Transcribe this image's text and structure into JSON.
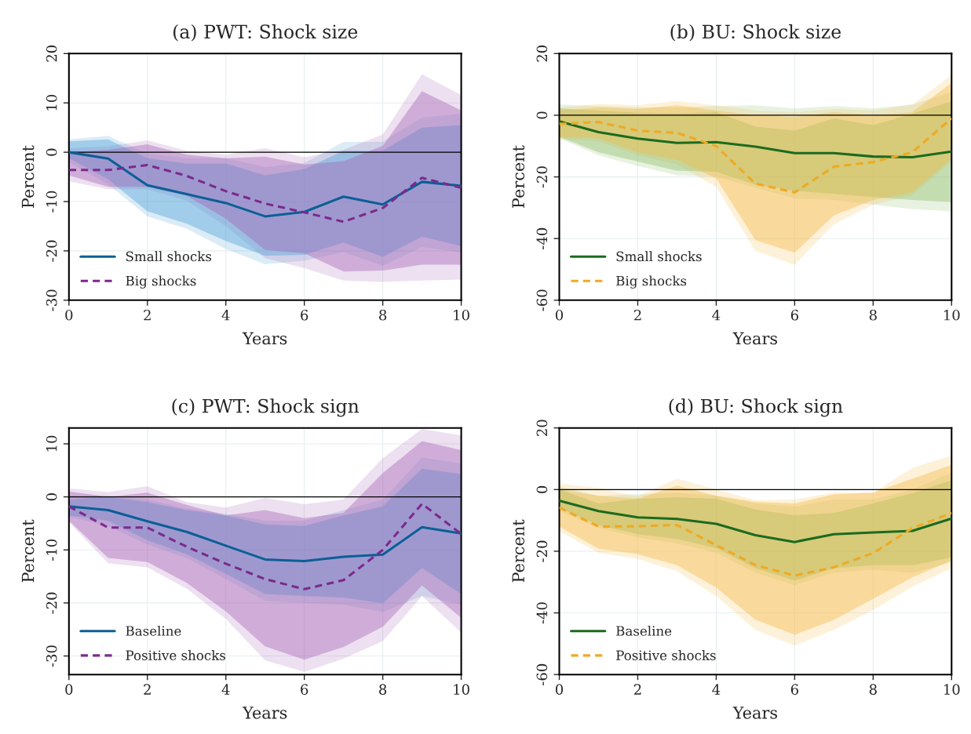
{
  "chart_data": [
    {
      "type": "line",
      "title": "(a) PWT: Shock size",
      "xlabel": "Years",
      "ylabel": "Percent",
      "x": [
        0,
        1,
        2,
        3,
        4,
        5,
        6,
        7,
        8,
        9,
        10
      ],
      "xlim": [
        0,
        10
      ],
      "xticks": [
        0,
        2,
        4,
        6,
        8,
        10
      ],
      "ylim": [
        -30,
        20
      ],
      "yticks": [
        -30,
        -20,
        -10,
        0,
        10,
        20
      ],
      "grid": true,
      "legend": "bottom left",
      "ref_lines": [
        {
          "axis": "y",
          "value": 0,
          "color": "#000000"
        }
      ],
      "series": [
        {
          "color": "#4a9fd8",
          "values": [
            null,
            null,
            null,
            null,
            null,
            null,
            null,
            null,
            null,
            null,
            null
          ],
          "lower": [
            -2,
            -6.5,
            -13,
            -15.5,
            -19.6,
            -22.7,
            -22,
            -20.2,
            -23,
            -19.2,
            -20.3
          ],
          "upper": [
            2.6,
            3.3,
            -0.3,
            -1.2,
            -1.2,
            -3,
            -2.2,
            2.1,
            2.1,
            7,
            7.8
          ]
        },
        {
          "color": "#a562b3",
          "values": [
            null,
            null,
            null,
            null,
            null,
            null,
            null,
            null,
            null,
            null,
            null
          ],
          "lower": [
            -5.9,
            -7.5,
            -7.5,
            -9.8,
            -15,
            -21.5,
            -23.5,
            -26,
            -26.3,
            -26,
            -25.8
          ],
          "upper": [
            0.8,
            1.2,
            2.4,
            0.3,
            -0.5,
            0.8,
            -1,
            0.5,
            3.6,
            15.8,
            11.6
          ]
        },
        {
          "color": "#4a9fd8",
          "values": [
            null,
            null,
            null,
            null,
            null,
            null,
            null,
            null,
            null,
            null,
            null
          ],
          "lower": [
            -1.2,
            -5.5,
            -12,
            -14.5,
            -18,
            -21,
            -20.8,
            -18.3,
            -21.2,
            -17.1,
            -19
          ],
          "upper": [
            2.2,
            2.6,
            -1.2,
            -2.3,
            -2.3,
            -4.7,
            -3.4,
            0.3,
            0.3,
            5,
            5.5
          ]
        },
        {
          "color": "#a562b3",
          "values": [
            null,
            null,
            null,
            null,
            null,
            null,
            null,
            null,
            null,
            null,
            null
          ],
          "lower": [
            -4.7,
            -7,
            -7,
            -8.8,
            -13.5,
            -19.8,
            -20.5,
            -24.2,
            -24,
            -22.8,
            -22.8
          ],
          "upper": [
            0,
            0.5,
            1.6,
            -0.5,
            -1.2,
            -0.9,
            -2.5,
            -1.8,
            1.3,
            12.4,
            8.5
          ]
        },
        {
          "name": "Small shocks",
          "color": "#0b5f96",
          "line_style": "solid",
          "values": [
            0,
            -1.3,
            -6.7,
            -8.5,
            -10.3,
            -13,
            -12.1,
            -9,
            -10.6,
            -6,
            -6.8
          ]
        },
        {
          "name": "Big shocks",
          "color": "#7b2a8c",
          "line_style": "dashed",
          "values": [
            -3.6,
            -3.6,
            -2.6,
            -4.8,
            -7.9,
            -10.4,
            -12.2,
            -14.1,
            -11.3,
            -5.2,
            -7.2
          ]
        }
      ]
    },
    {
      "type": "line",
      "title": "(b) BU: Shock size",
      "xlabel": "Years",
      "ylabel": "Percent",
      "x": [
        0,
        1,
        2,
        3,
        4,
        5,
        6,
        7,
        8,
        9,
        10
      ],
      "xlim": [
        0,
        10
      ],
      "xticks": [
        0,
        2,
        4,
        6,
        8,
        10
      ],
      "ylim": [
        -60,
        20
      ],
      "yticks": [
        -60,
        -40,
        -20,
        0,
        20
      ],
      "grid": true,
      "legend": "bottom left",
      "ref_lines": [
        {
          "axis": "y",
          "value": 0,
          "color": "#000000"
        }
      ],
      "series": [
        {
          "color": "#8bbf6a",
          "values": [
            null,
            null,
            null,
            null,
            null,
            null,
            null,
            null,
            null,
            null,
            null
          ],
          "lower": [
            -7.5,
            -13,
            -16.5,
            -19.5,
            -20,
            -23.5,
            -27,
            -27.5,
            -29,
            -30.5,
            -31.2
          ],
          "upper": [
            3.5,
            3,
            2.5,
            2.5,
            3,
            3.2,
            2.2,
            3,
            2.2,
            3.5,
            7.5
          ]
        },
        {
          "color": "#f5b942",
          "values": [
            null,
            null,
            null,
            null,
            null,
            null,
            null,
            null,
            null,
            null,
            null
          ],
          "lower": [
            -7.8,
            -8.5,
            -13,
            -16,
            -23.3,
            -44,
            -48.5,
            -35.3,
            -29,
            -26,
            -15
          ],
          "upper": [
            2.5,
            3.7,
            3.3,
            4.6,
            3.2,
            1.5,
            1,
            2,
            1.5,
            3.5,
            13
          ]
        },
        {
          "color": "#8bbf6a",
          "values": [
            null,
            null,
            null,
            null,
            null,
            null,
            null,
            null,
            null,
            null,
            null
          ],
          "lower": [
            -7,
            -12,
            -15,
            -18,
            -18.3,
            -22.5,
            -24.5,
            -25.5,
            -26.5,
            -27.5,
            -28.2
          ],
          "upper": [
            2.2,
            1.5,
            0.8,
            0.5,
            1,
            -3.7,
            -5,
            -1,
            -3.2,
            0.5,
            4.5
          ]
        },
        {
          "color": "#f5b942",
          "values": [
            null,
            null,
            null,
            null,
            null,
            null,
            null,
            null,
            null,
            null,
            null
          ],
          "lower": [
            -7,
            -7.5,
            -12,
            -14.5,
            -20.5,
            -40.5,
            -44.6,
            -32.5,
            -27.5,
            -25,
            -14
          ],
          "upper": [
            1.5,
            2.5,
            2,
            3.2,
            1.5,
            0,
            -0.5,
            1,
            0,
            1,
            10.5
          ]
        },
        {
          "name": "Small shocks",
          "color": "#1b6b1e",
          "line_style": "solid",
          "values": [
            -2,
            -5.5,
            -7.6,
            -9,
            -8.7,
            -10.2,
            -12.3,
            -12.3,
            -13.4,
            -13.6,
            -11.8
          ]
        },
        {
          "name": "Big shocks",
          "color": "#eeaa22",
          "line_style": "dashed",
          "values": [
            -2.8,
            -2.2,
            -5,
            -5.7,
            -10,
            -22.2,
            -25,
            -16.7,
            -15.2,
            -12,
            -1
          ]
        }
      ]
    },
    {
      "type": "line",
      "title": "(c) PWT: Shock sign",
      "xlabel": "Years",
      "ylabel": "Percent",
      "x": [
        0,
        1,
        2,
        3,
        4,
        5,
        6,
        7,
        8,
        9,
        10
      ],
      "xlim": [
        0,
        10
      ],
      "xticks": [
        0,
        2,
        4,
        6,
        8,
        10
      ],
      "ylim": [
        -33.5,
        13
      ],
      "yticks": [
        -30,
        -20,
        -10,
        0,
        10
      ],
      "grid": true,
      "legend": "bottom left",
      "ref_lines": [
        {
          "axis": "y",
          "value": 0,
          "color": "#000000"
        }
      ],
      "series": [
        {
          "color": "#4a9fd8",
          "values": [
            null,
            null,
            null,
            null,
            null,
            null,
            null,
            null,
            null,
            null,
            null
          ],
          "lower": [
            -3.8,
            -5.5,
            -9,
            -11.5,
            -15.5,
            -19.6,
            -20,
            -20.3,
            -21.7,
            -18.7,
            -20.3
          ],
          "upper": [
            0.3,
            0.3,
            -0.5,
            -2.2,
            -3.2,
            -4.5,
            -4.5,
            -2.5,
            -0.5,
            7.4,
            6.3
          ]
        },
        {
          "color": "#a562b3",
          "values": [
            null,
            null,
            null,
            null,
            null,
            null,
            null,
            null,
            null,
            null,
            null
          ],
          "lower": [
            -4.8,
            -12.5,
            -13.3,
            -17.3,
            -23,
            -30.8,
            -33,
            -30.5,
            -27.2,
            -18.7,
            -25.6
          ],
          "upper": [
            1.6,
            0.9,
            2,
            -1,
            -2,
            -0.2,
            -1.4,
            -0.5,
            7.3,
            12.8,
            11.6
          ]
        },
        {
          "color": "#4a9fd8",
          "values": [
            null,
            null,
            null,
            null,
            null,
            null,
            null,
            null,
            null,
            null,
            null
          ],
          "lower": [
            -3.5,
            -4.5,
            -8.2,
            -10.8,
            -14.5,
            -18.3,
            -18.7,
            -19,
            -20.1,
            -13.4,
            -18.3
          ],
          "upper": [
            -0.5,
            0,
            -1,
            -2.5,
            -3.5,
            -5.2,
            -5.5,
            -3.5,
            -1.8,
            5.3,
            4.3
          ]
        },
        {
          "color": "#a562b3",
          "values": [
            null,
            null,
            null,
            null,
            null,
            null,
            null,
            null,
            null,
            null,
            null
          ],
          "lower": [
            -4.5,
            -11.5,
            -12.3,
            -16.2,
            -21.6,
            -28.2,
            -30.7,
            -28.3,
            -24.5,
            -16.7,
            -22.8
          ],
          "upper": [
            1,
            0,
            0.8,
            -1.5,
            -3.5,
            -2.5,
            -4,
            -3,
            4.5,
            10.5,
            8.8
          ]
        },
        {
          "name": "Baseline",
          "color": "#0b5f96",
          "line_style": "solid",
          "values": [
            -1.8,
            -2.5,
            -4.6,
            -6.6,
            -9.2,
            -11.8,
            -12.1,
            -11.3,
            -10.9,
            -5.7,
            -6.9
          ]
        },
        {
          "name": "Positive shocks",
          "color": "#7b2a8c",
          "line_style": "dashed",
          "values": [
            -1.8,
            -5.8,
            -5.8,
            -9.4,
            -12.6,
            -15.5,
            -17.4,
            -15.7,
            -10,
            -1.3,
            -7
          ]
        }
      ]
    },
    {
      "type": "line",
      "title": "(d) BU: Shock sign",
      "xlabel": "Years",
      "ylabel": "Percent",
      "x": [
        0,
        1,
        2,
        3,
        4,
        5,
        6,
        7,
        8,
        9,
        10
      ],
      "xlim": [
        0,
        10
      ],
      "xticks": [
        0,
        2,
        4,
        6,
        8,
        10
      ],
      "ylim": [
        -60,
        20
      ],
      "yticks": [
        -60,
        -40,
        -20,
        0,
        20
      ],
      "grid": true,
      "legend": "bottom left",
      "ref_lines": [
        {
          "axis": "y",
          "value": 0,
          "color": "#000000"
        }
      ],
      "series": [
        {
          "color": "#8bbf6a",
          "values": [
            null,
            null,
            null,
            null,
            null,
            null,
            null,
            null,
            null,
            null,
            null
          ],
          "lower": [
            -7,
            -12.5,
            -15.5,
            -17.5,
            -20.5,
            -27,
            -31,
            -27,
            -26,
            -27,
            -23.5
          ],
          "upper": [
            1,
            -2,
            -1.5,
            -1,
            -2,
            -4.5,
            -5.5,
            -3.2,
            -3.2,
            0,
            5.5
          ]
        },
        {
          "color": "#f5b942",
          "values": [
            null,
            null,
            null,
            null,
            null,
            null,
            null,
            null,
            null,
            null,
            null
          ],
          "lower": [
            -13.5,
            -20.5,
            -22.5,
            -26.5,
            -34.5,
            -45.5,
            -50.6,
            -45.5,
            -39,
            -31.5,
            -25.5
          ],
          "upper": [
            2,
            0.5,
            -2.2,
            3.6,
            0,
            -3.5,
            -3.2,
            -1,
            -1,
            7,
            11
          ]
        },
        {
          "color": "#8bbf6a",
          "values": [
            null,
            null,
            null,
            null,
            null,
            null,
            null,
            null,
            null,
            null,
            null
          ],
          "lower": [
            -6,
            -11.5,
            -14.5,
            -16,
            -19,
            -25.5,
            -29.5,
            -25.5,
            -24.5,
            -24.5,
            -22
          ],
          "upper": [
            0,
            -4.5,
            -3,
            -2.5,
            -3,
            -6.5,
            -8.3,
            -7.6,
            -4.5,
            -1.2,
            3
          ]
        },
        {
          "color": "#f5b942",
          "values": [
            null,
            null,
            null,
            null,
            null,
            null,
            null,
            null,
            null,
            null,
            null
          ],
          "lower": [
            -12,
            -19.2,
            -21,
            -24.5,
            -31.8,
            -42.2,
            -47.1,
            -42.3,
            -35.5,
            -28.5,
            -23
          ],
          "upper": [
            0,
            -2,
            -3,
            1.3,
            -2,
            -4,
            -4.5,
            -1.5,
            -1,
            3.5,
            8
          ]
        },
        {
          "name": "Baseline",
          "color": "#1b6b1e",
          "line_style": "solid",
          "values": [
            -3.6,
            -7,
            -9,
            -9.5,
            -11.1,
            -14.8,
            -17,
            -14.5,
            -13.9,
            -13.4,
            -9.4
          ]
        },
        {
          "name": "Positive shocks",
          "color": "#eeaa22",
          "line_style": "dashed",
          "values": [
            -5.8,
            -12,
            -11.9,
            -11.5,
            -18,
            -24.5,
            -27.9,
            -25.2,
            -20.6,
            -12.5,
            -7.6
          ]
        }
      ]
    }
  ]
}
